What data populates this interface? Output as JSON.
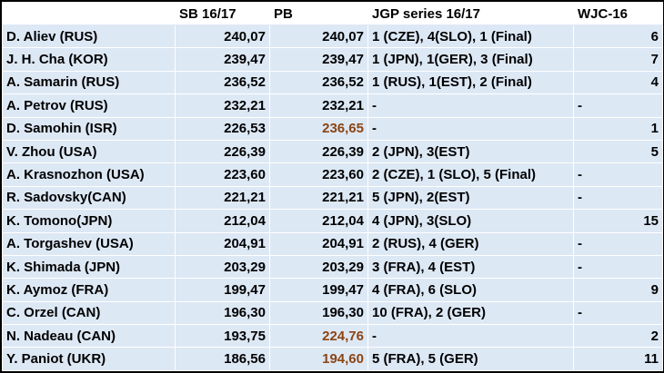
{
  "headers": {
    "name": "",
    "sb": "SB 16/17",
    "pb": "PB",
    "jgp": "JGP series 16/17",
    "wjc": "WJC-16"
  },
  "highlight_color": "#8b4513",
  "rows": [
    {
      "name": "D. Aliev (RUS)",
      "sb": "240,07",
      "pb": "240,07",
      "pb_highlight": false,
      "jgp": "1 (CZE), 4(SLO), 1 (Final)",
      "wjc": "6"
    },
    {
      "name": "J. H. Cha (KOR)",
      "sb": "239,47",
      "pb": "239,47",
      "pb_highlight": false,
      "jgp": "1 (JPN), 1(GER), 3 (Final)",
      "wjc": "7"
    },
    {
      "name": "A. Samarin (RUS)",
      "sb": "236,52",
      "pb": "236,52",
      "pb_highlight": false,
      "jgp": "1 (RUS), 1(EST), 2 (Final)",
      "wjc": "4"
    },
    {
      "name": "A. Petrov (RUS)",
      "sb": "232,21",
      "pb": "232,21",
      "pb_highlight": false,
      "jgp": "-",
      "wjc": "-"
    },
    {
      "name": "D. Samohin (ISR)",
      "sb": "226,53",
      "pb": "236,65",
      "pb_highlight": true,
      "jgp": "-",
      "wjc": "1"
    },
    {
      "name": "V. Zhou (USA)",
      "sb": "226,39",
      "pb": "226,39",
      "pb_highlight": false,
      "jgp": "2 (JPN), 3(EST)",
      "wjc": "5"
    },
    {
      "name": "A. Krasnozhon (USA)",
      "sb": "223,60",
      "pb": "223,60",
      "pb_highlight": false,
      "jgp": "2 (CZE), 1 (SLO), 5 (Final)",
      "wjc": "-"
    },
    {
      "name": "R. Sadovsky(CAN)",
      "sb": "221,21",
      "pb": "221,21",
      "pb_highlight": false,
      "jgp": "5 (JPN), 2(EST)",
      "wjc": "-"
    },
    {
      "name": "K. Tomono(JPN)",
      "sb": "212,04",
      "pb": "212,04",
      "pb_highlight": false,
      "jgp": "4 (JPN), 3(SLO)",
      "wjc": "15"
    },
    {
      "name": "A. Torgashev (USA)",
      "sb": "204,91",
      "pb": "204,91",
      "pb_highlight": false,
      "jgp": "2 (RUS), 4 (GER)",
      "wjc": "-"
    },
    {
      "name": "K. Shimada (JPN)",
      "sb": "203,29",
      "pb": "203,29",
      "pb_highlight": false,
      "jgp": "3 (FRA), 4 (EST)",
      "wjc": "-"
    },
    {
      "name": "K. Aymoz (FRA)",
      "sb": "199,47",
      "pb": "199,47",
      "pb_highlight": false,
      "jgp": "4 (FRA), 6 (SLO)",
      "wjc": "9"
    },
    {
      "name": "C. Orzel (CAN)",
      "sb": "196,30",
      "pb": "196,30",
      "pb_highlight": false,
      "jgp": "10 (FRA), 2 (GER)",
      "wjc": "-"
    },
    {
      "name": "N. Nadeau (CAN)",
      "sb": "193,75",
      "pb": "224,76",
      "pb_highlight": true,
      "jgp": "-",
      "wjc": "2"
    },
    {
      "name": "Y. Paniot (UKR)",
      "sb": "186,56",
      "pb": "194,60",
      "pb_highlight": true,
      "jgp": "5 (FRA), 5 (GER)",
      "wjc": "11"
    }
  ]
}
